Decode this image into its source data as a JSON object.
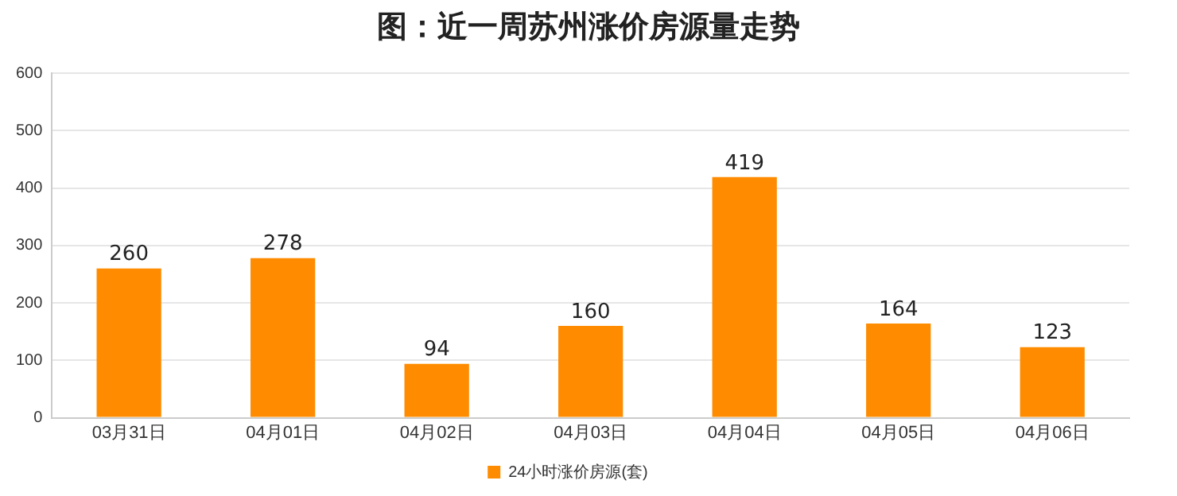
{
  "chart_data": {
    "type": "bar",
    "title": "图：近一周苏州涨价房源量走势",
    "categories": [
      "03月31日",
      "04月01日",
      "04月02日",
      "04月03日",
      "04月04日",
      "04月05日",
      "04月06日"
    ],
    "series": [
      {
        "name": "24小时涨价房源(套)",
        "color": "#ff8c00",
        "values": [
          260,
          278,
          94,
          160,
          419,
          164,
          123
        ]
      }
    ],
    "ylim": [
      0,
      600
    ],
    "yticks": [
      0,
      100,
      200,
      300,
      400,
      500,
      600
    ],
    "grid": "y",
    "legend": "bottom",
    "data_labels": true
  }
}
